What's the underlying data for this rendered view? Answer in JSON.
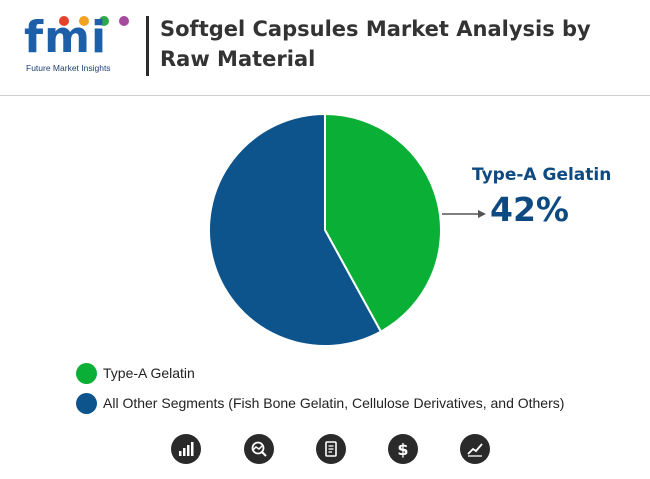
{
  "brand": {
    "logo_text": "fmi",
    "tagline": "Future Market Insights"
  },
  "title": "Softgel Capsules Market Analysis by Raw Material",
  "chart_data": {
    "type": "pie",
    "slices": [
      {
        "label": "Type-A Gelatin",
        "value": 42,
        "color": "#0aaf36"
      },
      {
        "label": "All Other Segments (Fish Bone Gelatin, Cellulose Derivatives, and Others)",
        "value": 58,
        "color": "#0d538c"
      }
    ],
    "callout": {
      "label": "Type-A Gelatin",
      "value_text": "42%"
    },
    "legend_position": "bottom-left"
  },
  "footer_icons": [
    "bar-chart-icon",
    "trend-search-icon",
    "report-document-icon",
    "dollar-icon",
    "growth-chart-icon"
  ]
}
